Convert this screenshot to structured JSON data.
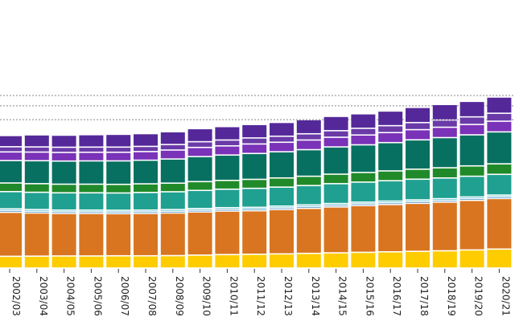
{
  "chart_data": {
    "type": "bar",
    "stacked": true,
    "title": "",
    "xlabel": "",
    "ylabel": "",
    "ylim": [
      0,
      100
    ],
    "grid": "dotted horizontal",
    "categories": [
      "2002/03",
      "2003/04",
      "2004/05",
      "2005/06",
      "2006/07",
      "2007/08",
      "2008/09",
      "2009/10",
      "2010/11",
      "2011/12",
      "2012/13",
      "2013/14",
      "2014/15",
      "2015/16",
      "2016/17",
      "2017/18",
      "2018/19",
      "2019/20",
      "2020/21"
    ],
    "gridlines": [
      86,
      94,
      100
    ],
    "series": [
      {
        "name": "series-1",
        "color": "#ffcc00",
        "values": [
          6.8,
          6.9,
          7.0,
          7.0,
          7.1,
          7.1,
          7.2,
          7.5,
          7.8,
          8.0,
          8.2,
          8.5,
          8.8,
          9.1,
          9.4,
          9.7,
          10.0,
          10.5,
          11.0
        ]
      },
      {
        "name": "series-2",
        "color": "#d97520",
        "values": [
          25.5,
          25.0,
          24.6,
          24.6,
          24.4,
          24.5,
          24.7,
          25.0,
          25.2,
          25.2,
          25.7,
          26.1,
          26.6,
          27.1,
          27.4,
          27.8,
          28.2,
          28.7,
          29.3
        ]
      },
      {
        "name": "series-3",
        "color": "#1f6fb0",
        "values": [
          1.0,
          1.0,
          1.0,
          1.0,
          1.0,
          1.0,
          1.0,
          1.0,
          1.0,
          1.0,
          1.0,
          1.0,
          1.0,
          1.0,
          1.0,
          1.0,
          1.0,
          1.0,
          1.0
        ]
      },
      {
        "name": "series-4",
        "color": "#2bb0c0",
        "values": [
          1.0,
          1.0,
          1.0,
          1.0,
          1.0,
          1.0,
          1.0,
          1.0,
          1.0,
          1.0,
          1.0,
          1.0,
          1.0,
          1.0,
          1.0,
          1.0,
          1.0,
          1.0,
          1.0
        ]
      },
      {
        "name": "series-5",
        "color": "#20a090",
        "values": [
          10.0,
          10.0,
          10.0,
          10.0,
          10.0,
          10.2,
          10.3,
          10.5,
          10.7,
          11.0,
          11.0,
          11.2,
          11.5,
          11.6,
          11.8,
          12.0,
          12.0,
          12.0,
          12.0
        ]
      },
      {
        "name": "series-6",
        "color": "#208a2a",
        "values": [
          5.0,
          5.0,
          5.0,
          5.0,
          5.0,
          5.0,
          5.0,
          5.1,
          5.1,
          5.2,
          5.3,
          5.4,
          5.5,
          5.6,
          5.7,
          5.8,
          5.9,
          6.0,
          6.1
        ]
      },
      {
        "name": "series-7",
        "color": "#087060",
        "values": [
          13.0,
          13.3,
          13.4,
          13.5,
          13.6,
          13.7,
          14.0,
          14.5,
          14.7,
          15.0,
          15.2,
          15.4,
          15.8,
          16.0,
          16.4,
          17.0,
          17.5,
          18.0,
          18.5
        ]
      },
      {
        "name": "series-8",
        "color": "#7a32b8",
        "values": [
          5.0,
          5.0,
          5.0,
          5.0,
          5.0,
          5.0,
          5.2,
          5.3,
          5.3,
          5.5,
          5.5,
          5.6,
          5.6,
          5.7,
          5.8,
          5.9,
          6.0,
          6.0,
          6.2
        ]
      },
      {
        "name": "series-9",
        "color": "#6a3aa8",
        "values": [
          3.0,
          3.0,
          3.0,
          3.0,
          3.0,
          3.0,
          3.2,
          3.3,
          3.4,
          3.5,
          3.5,
          3.6,
          3.8,
          3.9,
          4.0,
          4.1,
          4.2,
          4.4,
          4.6
        ]
      },
      {
        "name": "series-10",
        "color": "#55289a",
        "values": [
          6.5,
          7.0,
          7.0,
          7.2,
          7.4,
          7.4,
          7.4,
          7.6,
          7.8,
          7.8,
          8.0,
          8.2,
          8.3,
          8.4,
          8.5,
          8.8,
          9.0,
          9.0,
          9.4
        ]
      }
    ]
  }
}
